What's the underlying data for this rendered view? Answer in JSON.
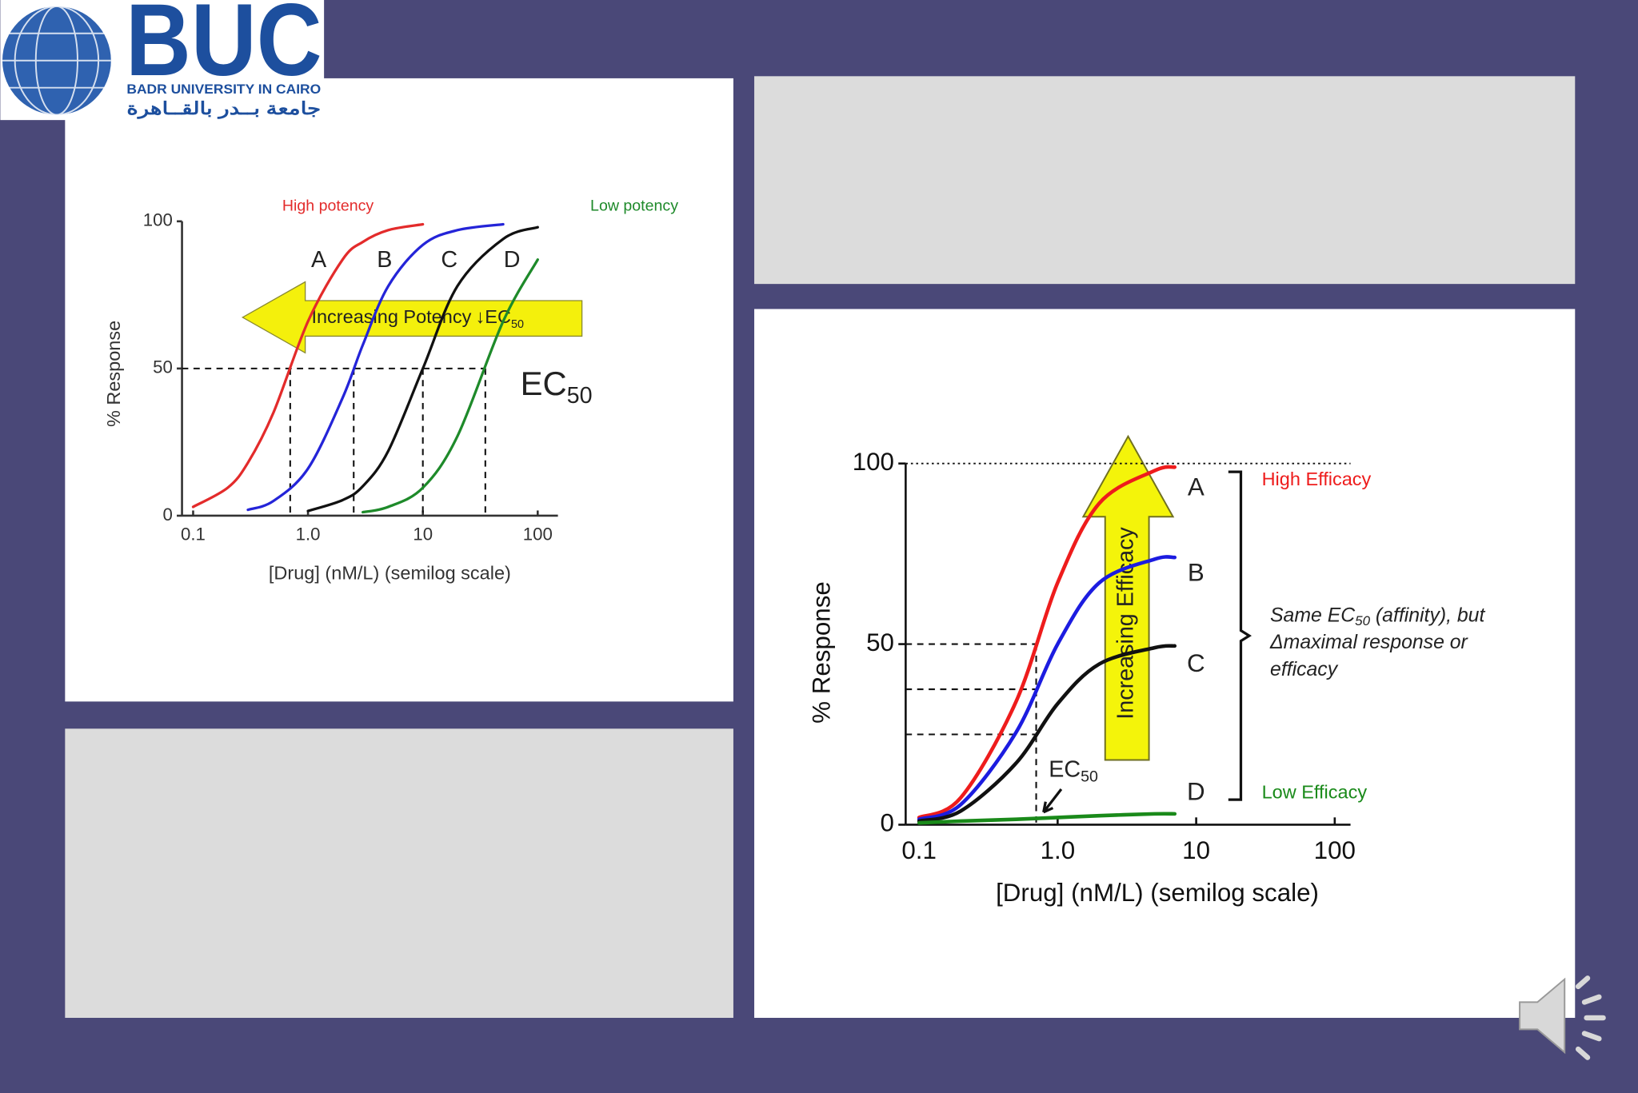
{
  "logo": {
    "name": "BUC",
    "english": "BADR UNIVERSITY IN CAIRO",
    "arabic": "جامعة بــدر بالقــاهرة"
  },
  "chart_data": [
    {
      "type": "line",
      "x_log": true,
      "x_label": "[Drug] (nM/L) (semilog scale)",
      "y_label": "% Response",
      "x": [
        0.1,
        0.2,
        0.3,
        0.5,
        1,
        2,
        3,
        5,
        10,
        20,
        50,
        100
      ],
      "series": [
        {
          "name": "A",
          "color": "#e32b2b",
          "values": [
            3,
            9.5,
            18,
            35,
            66,
            87,
            93,
            97,
            99,
            null,
            null,
            null
          ]
        },
        {
          "name": "B",
          "color": "#2424d8",
          "values": [
            null,
            null,
            2,
            5,
            16,
            40,
            58,
            78,
            92,
            97,
            99,
            null
          ]
        },
        {
          "name": "C",
          "color": "#111111",
          "values": [
            null,
            null,
            null,
            null,
            1.6,
            5.3,
            10,
            22,
            50,
            78,
            94,
            98
          ]
        },
        {
          "name": "D",
          "color": "#1e8a2a",
          "values": [
            null,
            null,
            null,
            null,
            null,
            null,
            1.2,
            3,
            9.5,
            27,
            66,
            87
          ]
        }
      ],
      "xlim": [
        0.08,
        150
      ],
      "ylim": [
        0,
        100
      ],
      "xticks": [
        0.1,
        {
          "value": 1,
          "label": "1.0"
        },
        10,
        100
      ],
      "yticks": [
        0,
        50,
        100
      ],
      "ec50": [
        0.7,
        2.5,
        10,
        35
      ],
      "ec50_response": 50,
      "annotations": {
        "high": "High potency",
        "low": "Low potency",
        "arrow": "Increasing Potency",
        "arrow_ec": "↓EC",
        "arrow_sub": "50",
        "ec": "EC",
        "ec_sub": "50"
      }
    },
    {
      "type": "line",
      "x_log": true,
      "x_label": "[Drug] (nM/L) (semilog scale)",
      "y_label": "% Response",
      "x": [
        0.1,
        0.2,
        0.5,
        1,
        2,
        5,
        7
      ],
      "series": [
        {
          "name": "A",
          "color": "#ee1c1c",
          "values": [
            2,
            7.5,
            34,
            67,
            89,
            98,
            99
          ]
        },
        {
          "name": "B",
          "color": "#1c1ce0",
          "values": [
            1.5,
            5.6,
            25.5,
            50,
            67,
            73.5,
            74
          ]
        },
        {
          "name": "C",
          "color": "#111111",
          "values": [
            1,
            3.8,
            17,
            33.5,
            44.5,
            49,
            49.5
          ]
        },
        {
          "name": "D",
          "color": "#1a8a1a",
          "values": [
            0.5,
            1,
            1.5,
            2,
            2.5,
            3,
            3
          ]
        }
      ],
      "xlim": [
        0.08,
        130
      ],
      "ylim": [
        0,
        100
      ],
      "xticks": [
        0.1,
        {
          "value": 1,
          "label": "1.0"
        },
        10,
        100
      ],
      "yticks": [
        0,
        50,
        100
      ],
      "max_line": 100,
      "ec50": 0.7,
      "ec50_responses": [
        50,
        37.5,
        25
      ],
      "annotations": {
        "high": "High Efficacy",
        "low": "Low Efficacy",
        "arrow": "Increasing Efficacy",
        "ec": "EC",
        "ec_sub": "50",
        "note": [
          "Same EC",
          "50",
          " (affinity), but",
          "Δmaximal response or",
          "efficacy"
        ]
      }
    }
  ]
}
